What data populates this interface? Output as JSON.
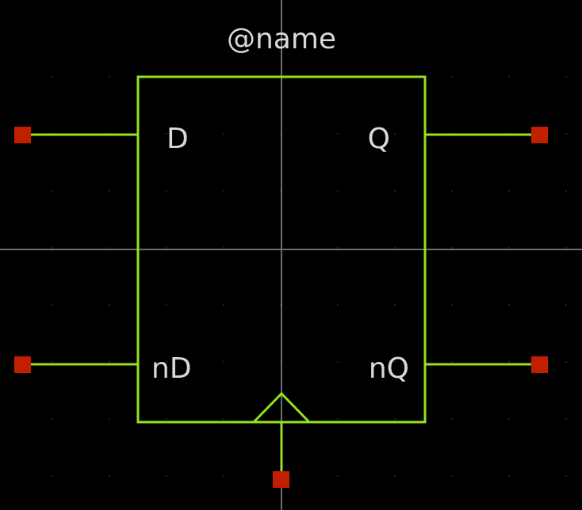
{
  "diagram": {
    "title": "@name",
    "pins": {
      "d": "D",
      "q": "Q",
      "nd": "nD",
      "nq": "nQ",
      "clock": ""
    },
    "colors": {
      "background": "#000000",
      "axis": "#6e6e6e",
      "symbol": "#95e11c",
      "pin": "#c21e00",
      "text": "#d9d9d9",
      "grid": "#2b2b2b"
    }
  }
}
